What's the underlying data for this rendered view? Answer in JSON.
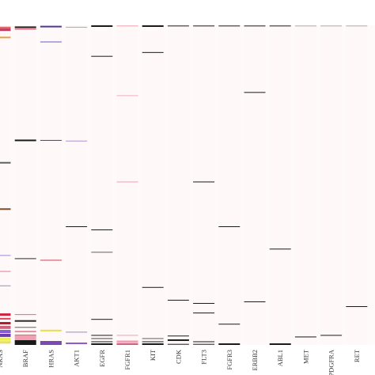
{
  "chart_data": {
    "type": "heatmap",
    "title": "",
    "xlabel": "",
    "ylabel": "",
    "background": "#fffafa",
    "ylim": [
      0,
      1
    ],
    "columns": [
      {
        "label": "NRAS",
        "marks": [
          {
            "y": 0.008,
            "color": "#e06a6a",
            "t": 3
          },
          {
            "y": 0.014,
            "color": "#c04060",
            "t": 3
          },
          {
            "y": 0.038,
            "color": "#e8a040",
            "t": 2
          },
          {
            "y": 0.43,
            "color": "#606060",
            "t": 2
          },
          {
            "y": 0.575,
            "color": "#7b4a2a",
            "t": 2
          },
          {
            "y": 0.72,
            "color": "#9a88d6",
            "t": 1
          },
          {
            "y": 0.77,
            "color": "#e07a9a",
            "t": 1
          },
          {
            "y": 0.815,
            "color": "#9a88d6",
            "t": 1
          },
          {
            "y": 0.905,
            "color": "#d02040",
            "t": 3
          },
          {
            "y": 0.918,
            "color": "#e04060",
            "t": 2
          },
          {
            "y": 0.932,
            "color": "#b01a2a",
            "t": 3
          },
          {
            "y": 0.945,
            "color": "#d06080",
            "t": 4
          },
          {
            "y": 0.958,
            "color": "#8a5ad0",
            "t": 4
          },
          {
            "y": 0.97,
            "color": "#6a3ab0",
            "t": 4
          },
          {
            "y": 0.982,
            "color": "#f0f040",
            "t": 4
          },
          {
            "y": 0.992,
            "color": "#e6e060",
            "t": 3
          }
        ]
      },
      {
        "label": "BRAF",
        "marks": [
          {
            "y": 0.006,
            "color": "#1a1a1a",
            "t": 2
          },
          {
            "y": 0.012,
            "color": "#d03050",
            "t": 1
          },
          {
            "y": 0.36,
            "color": "#1a1a1a",
            "t": 2
          },
          {
            "y": 0.73,
            "color": "#2a2a2a",
            "t": 1
          },
          {
            "y": 0.905,
            "color": "#e06a8a",
            "t": 1
          },
          {
            "y": 0.925,
            "color": "#2a2a2a",
            "t": 2
          },
          {
            "y": 0.945,
            "color": "#606060",
            "t": 1
          },
          {
            "y": 0.958,
            "color": "#d03050",
            "t": 1
          },
          {
            "y": 0.97,
            "color": "#e07070",
            "t": 2
          },
          {
            "y": 0.985,
            "color": "#f0a0b0",
            "t": 12
          },
          {
            "y": 0.995,
            "color": "#1a1a1a",
            "t": 6
          }
        ]
      },
      {
        "label": "HRAS",
        "marks": [
          {
            "y": 0.004,
            "color": "#4a3a9a",
            "t": 2
          },
          {
            "y": 0.052,
            "color": "#6a5ac0",
            "t": 1
          },
          {
            "y": 0.36,
            "color": "#4a3a9a",
            "t": 1
          },
          {
            "y": 0.735,
            "color": "#d04050",
            "t": 1
          },
          {
            "y": 0.955,
            "color": "#e8e040",
            "t": 2
          },
          {
            "y": 0.995,
            "color": "#7a4ab0",
            "t": 5
          }
        ]
      },
      {
        "label": "AKT1",
        "marks": [
          {
            "y": 0.006,
            "color": "#aaaaaa",
            "t": 1
          },
          {
            "y": 0.362,
            "color": "#b090d0",
            "t": 1
          },
          {
            "y": 0.63,
            "color": "#1a1a1a",
            "t": 1
          },
          {
            "y": 0.96,
            "color": "#9a88d6",
            "t": 1
          },
          {
            "y": 0.995,
            "color": "#8a5ad0",
            "t": 2
          }
        ]
      },
      {
        "label": "EGFR",
        "marks": [
          {
            "y": 0.002,
            "color": "#1a1a1a",
            "t": 2
          },
          {
            "y": 0.097,
            "color": "#1a1a1a",
            "t": 1
          },
          {
            "y": 0.64,
            "color": "#1a1a1a",
            "t": 1
          },
          {
            "y": 0.71,
            "color": "#606060",
            "t": 1
          },
          {
            "y": 0.92,
            "color": "#1a1a1a",
            "t": 1
          },
          {
            "y": 0.97,
            "color": "#1a1a1a",
            "t": 1
          },
          {
            "y": 0.98,
            "color": "#4a4a4a",
            "t": 1
          },
          {
            "y": 0.99,
            "color": "#1a1a1a",
            "t": 1
          },
          {
            "y": 0.998,
            "color": "#1a1a1a",
            "t": 2
          }
        ]
      },
      {
        "label": "FGFR1",
        "marks": [
          {
            "y": 0.002,
            "color": "#f0a0b0",
            "t": 1
          },
          {
            "y": 0.22,
            "color": "#f0b0c0",
            "t": 1
          },
          {
            "y": 0.49,
            "color": "#f0a0b0",
            "t": 1
          },
          {
            "y": 0.97,
            "color": "#f0a0b0",
            "t": 1
          },
          {
            "y": 0.99,
            "color": "#f0a0b0",
            "t": 3
          },
          {
            "y": 0.998,
            "color": "#d06080",
            "t": 2
          }
        ]
      },
      {
        "label": "KIT",
        "marks": [
          {
            "y": 0.002,
            "color": "#1a1a1a",
            "t": 2
          },
          {
            "y": 0.085,
            "color": "#1a1a1a",
            "t": 1
          },
          {
            "y": 0.82,
            "color": "#1a1a1a",
            "t": 1
          },
          {
            "y": 0.98,
            "color": "#606060",
            "t": 1
          },
          {
            "y": 0.99,
            "color": "#1a1a1a",
            "t": 1
          },
          {
            "y": 0.998,
            "color": "#1a1a1a",
            "t": 2
          }
        ]
      },
      {
        "label": "CDK",
        "marks": [
          {
            "y": 0.002,
            "color": "#1a1a1a",
            "t": 1
          },
          {
            "y": 0.86,
            "color": "#1a1a1a",
            "t": 1
          },
          {
            "y": 0.972,
            "color": "#1a1a1a",
            "t": 1
          },
          {
            "y": 0.985,
            "color": "#1a1a1a",
            "t": 2
          },
          {
            "y": 0.998,
            "color": "#1a1a1a",
            "t": 1
          }
        ]
      },
      {
        "label": "FLT3",
        "marks": [
          {
            "y": 0.002,
            "color": "#1a1a1a",
            "t": 1
          },
          {
            "y": 0.49,
            "color": "#1a1a1a",
            "t": 1
          },
          {
            "y": 0.87,
            "color": "#1a1a1a",
            "t": 1
          },
          {
            "y": 0.9,
            "color": "#1a1a1a",
            "t": 1
          },
          {
            "y": 0.99,
            "color": "#1a1a1a",
            "t": 1
          },
          {
            "y": 0.998,
            "color": "#1a1a1a",
            "t": 1
          }
        ]
      },
      {
        "label": "FGFR3",
        "marks": [
          {
            "y": 0.002,
            "color": "#1a1a1a",
            "t": 1
          },
          {
            "y": 0.63,
            "color": "#1a1a1a",
            "t": 1
          },
          {
            "y": 0.935,
            "color": "#1a1a1a",
            "t": 1
          },
          {
            "y": 0.998,
            "color": "#1a1a1a",
            "t": 2
          }
        ]
      },
      {
        "label": "ERBB2",
        "marks": [
          {
            "y": 0.002,
            "color": "#1a1a1a",
            "t": 1
          },
          {
            "y": 0.21,
            "color": "#1a1a1a",
            "t": 1
          },
          {
            "y": 0.865,
            "color": "#1a1a1a",
            "t": 1
          }
        ]
      },
      {
        "label": "ABL1",
        "marks": [
          {
            "y": 0.002,
            "color": "#1a1a1a",
            "t": 1
          },
          {
            "y": 0.7,
            "color": "#1a1a1a",
            "t": 1
          },
          {
            "y": 0.998,
            "color": "#1a1a1a",
            "t": 2
          }
        ]
      },
      {
        "label": "MET",
        "marks": [
          {
            "y": 0.002,
            "color": "#aaaaaa",
            "t": 1
          },
          {
            "y": 0.975,
            "color": "#1a1a1a",
            "t": 1
          }
        ]
      },
      {
        "label": "PDGFRA",
        "marks": [
          {
            "y": 0.002,
            "color": "#aaaaaa",
            "t": 1
          },
          {
            "y": 0.97,
            "color": "#1a1a1a",
            "t": 1
          }
        ]
      },
      {
        "label": "RET",
        "marks": [
          {
            "y": 0.002,
            "color": "#aaaaaa",
            "t": 1
          },
          {
            "y": 0.88,
            "color": "#1a1a1a",
            "t": 1
          }
        ]
      }
    ]
  }
}
